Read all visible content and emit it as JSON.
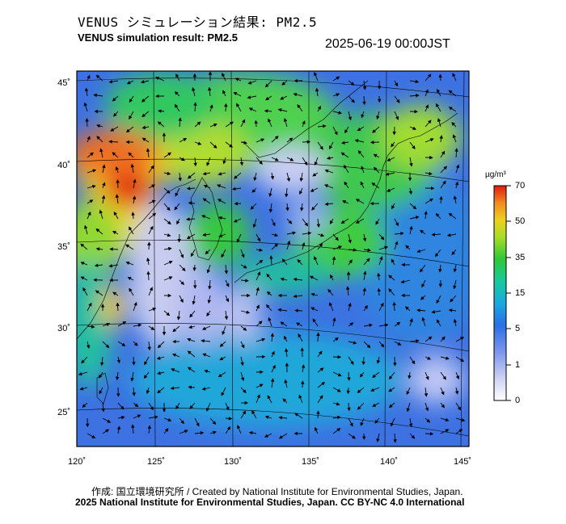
{
  "title_ja": "VENUS シミュレーション結果: PM2.5",
  "title_en": "VENUS simulation result: PM2.5",
  "timestamp": "2025-06-19 00:00JST",
  "lat_labels": [
    "45˚",
    "40˚",
    "35˚",
    "30˚",
    "25˚"
  ],
  "lon_labels": [
    "120˚",
    "125˚",
    "130˚",
    "135˚",
    "140˚",
    "145˚"
  ],
  "colorbar": {
    "unit": "µg/m³",
    "ticks": [
      "70",
      "50",
      "35",
      "15",
      "5",
      "1",
      "0"
    ],
    "colors": [
      "#d9d9f7",
      "#a0a8ee",
      "#4a78e6",
      "#1ea0e8",
      "#18c8a8",
      "#2cc840",
      "#96dc28",
      "#ecd820",
      "#f09020",
      "#e02010"
    ]
  },
  "footer_line1": "作成: 国立環境研究所 / Created by National Institute for Environmental Studies, Japan.",
  "footer_line2": "2025 National Institute for Environmental Studies, Japan. CC BY-NC 4.0 International"
}
